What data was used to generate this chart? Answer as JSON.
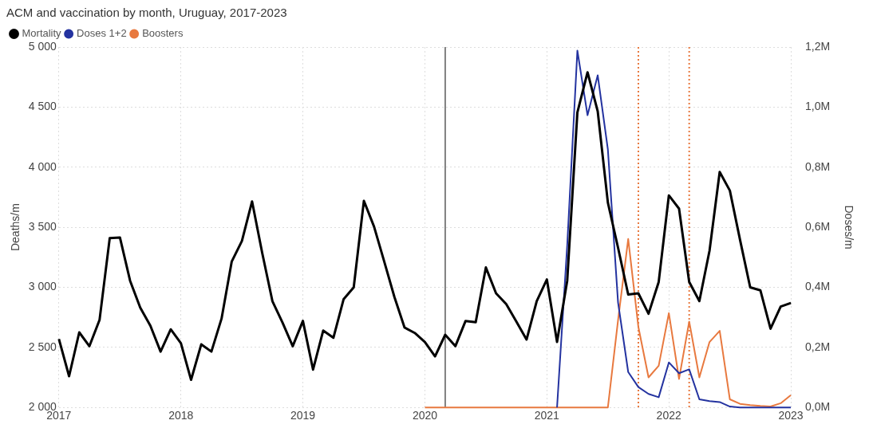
{
  "chart_data": {
    "type": "line",
    "title": "ACM and vaccination by month, Uruguay, 2017-2023",
    "ylabel": "Deaths/m",
    "y2label": "Doses/m",
    "xlim": [
      "2017-01",
      "2023-01"
    ],
    "xticks": [
      "2017",
      "2018",
      "2019",
      "2020",
      "2021",
      "2022",
      "2023"
    ],
    "ylim": [
      2000,
      5000
    ],
    "yticks": [
      {
        "value": 2000,
        "label": "2 000"
      },
      {
        "value": 2500,
        "label": "2 500"
      },
      {
        "value": 3000,
        "label": "3 000"
      },
      {
        "value": 3500,
        "label": "3 500"
      },
      {
        "value": 4000,
        "label": "4 000"
      },
      {
        "value": 4500,
        "label": "4 500"
      },
      {
        "value": 5000,
        "label": "5 000"
      }
    ],
    "y2lim": [
      0,
      1200000
    ],
    "y2ticks": [
      {
        "value": 0,
        "label": "0,0M"
      },
      {
        "value": 200000,
        "label": "0,2M"
      },
      {
        "value": 400000,
        "label": "0,4M"
      },
      {
        "value": 600000,
        "label": "0,6M"
      },
      {
        "value": 800000,
        "label": "0,8M"
      },
      {
        "value": 1000000,
        "label": "1,0M"
      },
      {
        "value": 1200000,
        "label": "1,2M"
      }
    ],
    "grid": true,
    "legend": "top left",
    "marker": "none",
    "line_style": "solid",
    "ref_lines": [
      {
        "axis": "x",
        "value": "2020-03",
        "color": "#808080",
        "line_style": "solid"
      },
      {
        "axis": "x",
        "value": "2021-10",
        "color": "#e8793f",
        "line_style": "dotted"
      },
      {
        "axis": "x",
        "value": "2022-03",
        "color": "#e8793f",
        "line_style": "dotted"
      }
    ],
    "series": [
      {
        "name": "Mortality",
        "color": "#000000",
        "x": [
          "2017-01",
          "2017-02",
          "2017-03",
          "2017-04",
          "2017-05",
          "2017-06",
          "2017-07",
          "2017-08",
          "2017-09",
          "2017-10",
          "2017-11",
          "2017-12",
          "2018-01",
          "2018-02",
          "2018-03",
          "2018-04",
          "2018-05",
          "2018-06",
          "2018-07",
          "2018-08",
          "2018-09",
          "2018-10",
          "2018-11",
          "2018-12",
          "2019-01",
          "2019-02",
          "2019-03",
          "2019-04",
          "2019-05",
          "2019-06",
          "2019-07",
          "2019-08",
          "2019-09",
          "2019-10",
          "2019-11",
          "2019-12",
          "2020-01",
          "2020-02",
          "2020-03",
          "2020-04",
          "2020-05",
          "2020-06",
          "2020-07",
          "2020-08",
          "2020-09",
          "2020-10",
          "2020-11",
          "2020-12",
          "2021-01",
          "2021-02",
          "2021-03",
          "2021-04",
          "2021-05",
          "2021-06",
          "2021-07",
          "2021-08",
          "2021-09",
          "2021-10",
          "2021-11",
          "2021-12",
          "2022-01",
          "2022-02",
          "2022-03",
          "2022-04",
          "2022-05",
          "2022-06",
          "2022-07",
          "2022-08",
          "2022-09",
          "2022-10",
          "2022-11",
          "2022-12",
          "2023-01"
        ],
        "values": [
          2570,
          2260,
          2625,
          2510,
          2730,
          3410,
          3415,
          3055,
          2830,
          2680,
          2465,
          2650,
          2535,
          2230,
          2525,
          2465,
          2740,
          3215,
          3385,
          3715,
          3285,
          2885,
          2705,
          2510,
          2720,
          2315,
          2640,
          2580,
          2900,
          3000,
          3720,
          3505,
          3215,
          2920,
          2665,
          2620,
          2545,
          2425,
          2605,
          2510,
          2720,
          2710,
          3165,
          2950,
          2860,
          2715,
          2565,
          2885,
          3065,
          2545,
          3055,
          4455,
          4790,
          4465,
          3705,
          3330,
          2940,
          2950,
          2780,
          3045,
          3765,
          3655,
          3045,
          2885,
          3305,
          3960,
          3805,
          3395,
          3000,
          2975,
          2655,
          2840,
          2870
        ]
      },
      {
        "name": "Doses 1+2",
        "color": "#2433a0",
        "axis": "y2",
        "x": [
          "2021-02",
          "2021-03",
          "2021-04",
          "2021-05",
          "2021-06",
          "2021-07",
          "2021-08",
          "2021-09",
          "2021-10",
          "2021-11",
          "2021-12",
          "2022-01",
          "2022-02",
          "2022-03",
          "2022-04",
          "2022-05",
          "2022-06",
          "2022-07",
          "2022-08",
          "2022-09",
          "2022-10",
          "2022-11",
          "2022-12",
          "2023-01"
        ],
        "values": [
          0,
          540000,
          1188000,
          973000,
          1106000,
          859000,
          350000,
          118000,
          68000,
          45000,
          34000,
          150000,
          114000,
          127000,
          27000,
          21000,
          18000,
          3000,
          0,
          0,
          0,
          0,
          0,
          0
        ]
      },
      {
        "name": "Boosters",
        "color": "#e8793f",
        "axis": "y2",
        "x": [
          "2020-01",
          "2020-02",
          "2020-03",
          "2020-04",
          "2020-05",
          "2020-06",
          "2020-07",
          "2020-08",
          "2020-09",
          "2020-10",
          "2020-11",
          "2020-12",
          "2021-01",
          "2021-02",
          "2021-03",
          "2021-04",
          "2021-05",
          "2021-06",
          "2021-07",
          "2021-08",
          "2021-09",
          "2021-10",
          "2021-11",
          "2021-12",
          "2022-01",
          "2022-02",
          "2022-03",
          "2022-04",
          "2022-05",
          "2022-06",
          "2022-07",
          "2022-08",
          "2022-09",
          "2022-10",
          "2022-11",
          "2022-12",
          "2023-01"
        ],
        "values": [
          0,
          0,
          0,
          0,
          0,
          0,
          0,
          0,
          0,
          0,
          0,
          0,
          0,
          0,
          0,
          0,
          0,
          0,
          0,
          290000,
          561000,
          268000,
          100000,
          139000,
          314000,
          95000,
          286000,
          100000,
          218000,
          255000,
          27000,
          12000,
          8000,
          5000,
          3000,
          14000,
          41000
        ]
      }
    ]
  }
}
